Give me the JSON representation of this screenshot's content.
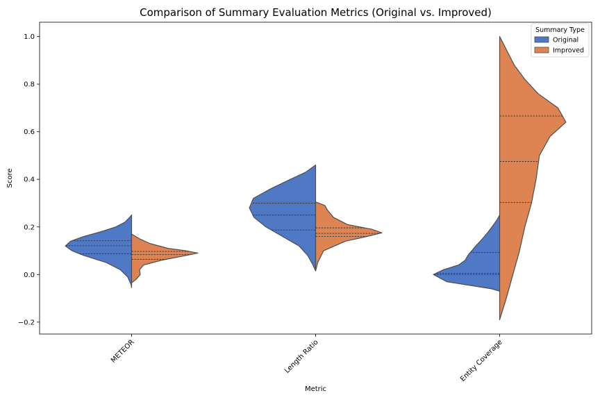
{
  "chart_data": {
    "type": "violin",
    "title": "Comparison of Summary Evaluation Metrics (Original vs. Improved)",
    "xlabel": "Metric",
    "ylabel": "Score",
    "ylim": [
      -0.25,
      1.06
    ],
    "yticks": [
      -0.2,
      0.0,
      0.2,
      0.4,
      0.6,
      0.8,
      1.0
    ],
    "ytick_labels": [
      "−0.2",
      "0.0",
      "0.2",
      "0.4",
      "0.6",
      "0.8",
      "1.0"
    ],
    "categories": [
      "METEOR",
      "Length Ratio",
      "Entity Coverage"
    ],
    "split": true,
    "inner": "quartile",
    "grid": false,
    "legend": {
      "title": "Summary Type",
      "placement": "top-right",
      "entries": [
        "Original",
        "Improved"
      ]
    },
    "series": [
      {
        "name": "Original",
        "color": "#4f79c5",
        "violins": [
          {
            "category": "METEOR",
            "quartiles": [
              0.087,
              0.121,
              0.142
            ],
            "profile": [
              [
                -0.055,
                0.0
              ],
              [
                -0.04,
                0.01
              ],
              [
                -0.01,
                0.06
              ],
              [
                0.02,
                0.17
              ],
              [
                0.05,
                0.38
              ],
              [
                0.08,
                0.72
              ],
              [
                0.1,
                0.9
              ],
              [
                0.12,
                1.0
              ],
              [
                0.14,
                0.92
              ],
              [
                0.16,
                0.72
              ],
              [
                0.18,
                0.46
              ],
              [
                0.2,
                0.24
              ],
              [
                0.22,
                0.1
              ],
              [
                0.24,
                0.03
              ],
              [
                0.25,
                0.0
              ]
            ]
          },
          {
            "category": "Length Ratio",
            "quartiles": [
              0.187,
              0.25,
              0.3
            ],
            "profile": [
              [
                0.015,
                0.0
              ],
              [
                0.04,
                0.04
              ],
              [
                0.08,
                0.12
              ],
              [
                0.12,
                0.25
              ],
              [
                0.16,
                0.5
              ],
              [
                0.2,
                0.75
              ],
              [
                0.24,
                0.93
              ],
              [
                0.28,
                1.0
              ],
              [
                0.32,
                0.94
              ],
              [
                0.36,
                0.68
              ],
              [
                0.4,
                0.38
              ],
              [
                0.43,
                0.15
              ],
              [
                0.46,
                0.0
              ]
            ]
          },
          {
            "category": "Entity Coverage",
            "quartiles": [
              0.0,
              0.005,
              0.093
            ],
            "profile": [
              [
                -0.07,
                0.0
              ],
              [
                -0.06,
                0.12
              ],
              [
                -0.03,
                0.8
              ],
              [
                0.0,
                1.0
              ],
              [
                0.02,
                0.85
              ],
              [
                0.04,
                0.62
              ],
              [
                0.06,
                0.52
              ],
              [
                0.08,
                0.48
              ],
              [
                0.1,
                0.42
              ],
              [
                0.12,
                0.36
              ],
              [
                0.15,
                0.26
              ],
              [
                0.18,
                0.17
              ],
              [
                0.21,
                0.09
              ],
              [
                0.23,
                0.04
              ],
              [
                0.25,
                0.0
              ]
            ]
          }
        ]
      },
      {
        "name": "Improved",
        "color": "#dd8452",
        "violins": [
          {
            "category": "METEOR",
            "quartiles": [
              0.064,
              0.084,
              0.097
            ],
            "profile": [
              [
                -0.035,
                0.0
              ],
              [
                -0.02,
                0.07
              ],
              [
                0.0,
                0.13
              ],
              [
                0.02,
                0.12
              ],
              [
                0.04,
                0.18
              ],
              [
                0.06,
                0.45
              ],
              [
                0.08,
                0.82
              ],
              [
                0.09,
                1.0
              ],
              [
                0.1,
                0.82
              ],
              [
                0.11,
                0.55
              ],
              [
                0.13,
                0.28
              ],
              [
                0.15,
                0.12
              ],
              [
                0.17,
                0.0
              ]
            ]
          },
          {
            "category": "Length Ratio",
            "quartiles": [
              0.16,
              0.173,
              0.196
            ],
            "profile": [
              [
                0.015,
                0.0
              ],
              [
                0.05,
                0.03
              ],
              [
                0.1,
                0.12
              ],
              [
                0.14,
                0.45
              ],
              [
                0.16,
                0.78
              ],
              [
                0.175,
                1.0
              ],
              [
                0.19,
                0.85
              ],
              [
                0.21,
                0.48
              ],
              [
                0.24,
                0.27
              ],
              [
                0.27,
                0.18
              ],
              [
                0.29,
                0.14
              ],
              [
                0.305,
                0.0
              ]
            ]
          },
          {
            "category": "Entity Coverage",
            "quartiles": [
              0.303,
              0.475,
              0.666
            ],
            "profile": [
              [
                -0.19,
                0.0
              ],
              [
                -0.1,
                0.1
              ],
              [
                0.0,
                0.2
              ],
              [
                0.1,
                0.3
              ],
              [
                0.2,
                0.38
              ],
              [
                0.3,
                0.48
              ],
              [
                0.4,
                0.55
              ],
              [
                0.5,
                0.6
              ],
              [
                0.58,
                0.76
              ],
              [
                0.64,
                1.0
              ],
              [
                0.7,
                0.88
              ],
              [
                0.76,
                0.58
              ],
              [
                0.82,
                0.38
              ],
              [
                0.88,
                0.22
              ],
              [
                0.94,
                0.11
              ],
              [
                1.0,
                0.0
              ]
            ]
          }
        ]
      }
    ]
  }
}
